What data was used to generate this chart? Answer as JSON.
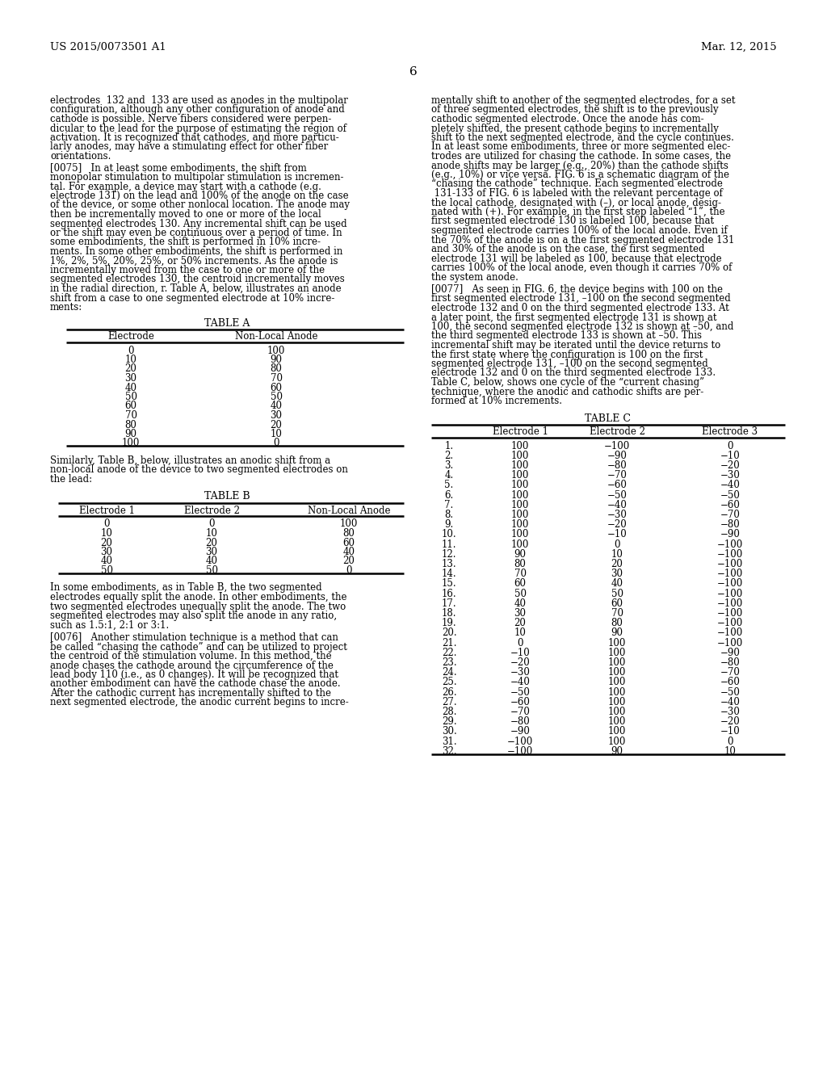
{
  "header_left": "US 2015/0073501 A1",
  "header_right": "Mar. 12, 2015",
  "page_number": "6",
  "table_a_title": "TABLE A",
  "table_a_headers": [
    "Electrode",
    "Non-Local Anode"
  ],
  "table_a_data": [
    [
      "0",
      "100"
    ],
    [
      "10",
      "90"
    ],
    [
      "20",
      "80"
    ],
    [
      "30",
      "70"
    ],
    [
      "40",
      "60"
    ],
    [
      "50",
      "50"
    ],
    [
      "60",
      "40"
    ],
    [
      "70",
      "30"
    ],
    [
      "80",
      "20"
    ],
    [
      "90",
      "10"
    ],
    [
      "100",
      "0"
    ]
  ],
  "table_b_text_lines": [
    "Similarly, Table B, below, illustrates an anodic shift from a",
    "non-local anode of the device to two segmented electrodes on",
    "the lead:"
  ],
  "table_b_title": "TABLE B",
  "table_b_headers": [
    "Electrode 1",
    "Electrode 2",
    "Non-Local Anode"
  ],
  "table_b_data": [
    [
      "0",
      "0",
      "100"
    ],
    [
      "10",
      "10",
      "80"
    ],
    [
      "20",
      "20",
      "60"
    ],
    [
      "30",
      "30",
      "40"
    ],
    [
      "40",
      "40",
      "20"
    ],
    [
      "50",
      "50",
      "0"
    ]
  ],
  "table_b_footer_lines": [
    "In some embodiments, as in Table B, the two segmented",
    "electrodes equally split the anode. In other embodiments, the",
    "two segmented electrodes unequally split the anode. The two",
    "segmented electrodes may also split the anode in any ratio,",
    "such as 1.5:1, 2:1 or 3:1."
  ],
  "para_0076_lines": [
    "[0076]   Another stimulation technique is a method that can",
    "be called “chasing the cathode” and can be utilized to project",
    "the centroid of the stimulation volume. In this method, the",
    "anode chases the cathode around the circumference of the",
    "lead body 110 (i.e., as 0 changes). It will be recognized that",
    "another embodiment can have the cathode chase the anode.",
    "After the cathodic current has incrementally shifted to the",
    "next segmented electrode, the anodic current begins to incre-"
  ],
  "col1_lines_part1": [
    "electrodes  132 and  133 are used as anodes in the multipolar",
    "configuration, although any other configuration of anode and",
    "cathode is possible. Nerve fibers considered were perpen-",
    "dicular to the lead for the purpose of estimating the region of",
    "activation. It is recognized that cathodes, and more particu-",
    "larly anodes, may have a stimulating effect for other fiber",
    "orientations."
  ],
  "col1_lines_part2": [
    "[0075]   In at least some embodiments, the shift from",
    "monopolar stimulation to multipolar stimulation is incremen-",
    "tal. For example, a device may start with a cathode (e.g.",
    "electrode 131) on the lead and 100% of the anode on the case",
    "of the device, or some other nonlocal location. The anode may",
    "then be incrementally moved to one or more of the local",
    "segmented electrodes 130. Any incremental shift can be used",
    "or the shift may even be continuous over a period of time. In",
    "some embodiments, the shift is performed in 10% incre-",
    "ments. In some other embodiments, the shift is performed in",
    "1%, 2%, 5%, 20%, 25%, or 50% increments. As the anode is",
    "incrementally moved from the case to one or more of the",
    "segmented electrodes 130, the centroid incrementally moves",
    "in the radial direction, r. Table A, below, illustrates an anode",
    "shift from a case to one segmented electrode at 10% incre-",
    "ments:"
  ],
  "col2_lines_part1": [
    "mentally shift to another of the segmented electrodes, for a set",
    "of three segmented electrodes, the shift is to the previously",
    "cathodic segmented electrode. Once the anode has com-",
    "pletely shifted, the present cathode begins to incrementally",
    "shift to the next segmented electrode, and the cycle continues.",
    "In at least some embodiments, three or more segmented elec-",
    "trodes are utilized for chasing the cathode. In some cases, the",
    "anode shifts may be larger (e.g., 20%) than the cathode shifts",
    "(e.g., 10%) or vice versa. FIG. 6 is a schematic diagram of the",
    "“chasing the cathode” technique. Each segmented electrode",
    " 131-133 of FIG. 6 is labeled with the relevant percentage of",
    "the local cathode, designated with (–), or local anode, desig-",
    "nated with (+). For example, in the first step labeled “1”, the",
    "first segmented electrode 130 is labeled 100, because that",
    "segmented electrode carries 100% of the local anode. Even if",
    "the 70% of the anode is on a the first segmented electrode 131",
    "and 30% of the anode is on the case, the first segmented",
    "electrode 131 will be labeled as 100, because that electrode",
    "carries 100% of the local anode, even though it carries 70% of",
    "the system anode."
  ],
  "col2_lines_part2": [
    "[0077]   As seen in FIG. 6, the device begins with 100 on the",
    "first segmented electrode 131, –100 on the second segmented",
    "electrode 132 and 0 on the third segmented electrode 133. At",
    "a later point, the first segmented electrode 131 is shown at",
    "100, the second segmented electrode 132 is shown at –50, and",
    "the third segmented electrode 133 is shown at –50. This",
    "incremental shift may be iterated until the device returns to",
    "the first state where the configuration is 100 on the first",
    "segmented electrode 131, –100 on the second segmented",
    "electrode 132 and 0 on the third segmented electrode 133.",
    "Table C, below, shows one cycle of the “current chasing”",
    "technique, where the anodic and cathodic shifts are per-",
    "formed at 10% increments."
  ],
  "table_c_title": "TABLE C",
  "table_c_headers": [
    "",
    "Electrode 1",
    "Electrode 2",
    "Electrode 3"
  ],
  "table_c_data": [
    [
      "1.",
      "100",
      "−100",
      "0"
    ],
    [
      "2.",
      "100",
      "−90",
      "−10"
    ],
    [
      "3.",
      "100",
      "−80",
      "−20"
    ],
    [
      "4.",
      "100",
      "−70",
      "−30"
    ],
    [
      "5.",
      "100",
      "−60",
      "−40"
    ],
    [
      "6.",
      "100",
      "−50",
      "−50"
    ],
    [
      "7.",
      "100",
      "−40",
      "−60"
    ],
    [
      "8.",
      "100",
      "−30",
      "−70"
    ],
    [
      "9.",
      "100",
      "−20",
      "−80"
    ],
    [
      "10.",
      "100",
      "−10",
      "−90"
    ],
    [
      "11.",
      "100",
      "0",
      "−100"
    ],
    [
      "12.",
      "90",
      "10",
      "−100"
    ],
    [
      "13.",
      "80",
      "20",
      "−100"
    ],
    [
      "14.",
      "70",
      "30",
      "−100"
    ],
    [
      "15.",
      "60",
      "40",
      "−100"
    ],
    [
      "16.",
      "50",
      "50",
      "−100"
    ],
    [
      "17.",
      "40",
      "60",
      "−100"
    ],
    [
      "18.",
      "30",
      "70",
      "−100"
    ],
    [
      "19.",
      "20",
      "80",
      "−100"
    ],
    [
      "20.",
      "10",
      "90",
      "−100"
    ],
    [
      "21.",
      "0",
      "100",
      "−100"
    ],
    [
      "22.",
      "−10",
      "100",
      "−90"
    ],
    [
      "23.",
      "−20",
      "100",
      "−80"
    ],
    [
      "24.",
      "−30",
      "100",
      "−70"
    ],
    [
      "25.",
      "−40",
      "100",
      "−60"
    ],
    [
      "26.",
      "−50",
      "100",
      "−50"
    ],
    [
      "27.",
      "−60",
      "100",
      "−40"
    ],
    [
      "28.",
      "−70",
      "100",
      "−30"
    ],
    [
      "29.",
      "−80",
      "100",
      "−20"
    ],
    [
      "30.",
      "−90",
      "100",
      "−10"
    ],
    [
      "31.",
      "−100",
      "100",
      "0"
    ],
    [
      "32.",
      "−100",
      "90",
      "10"
    ]
  ]
}
